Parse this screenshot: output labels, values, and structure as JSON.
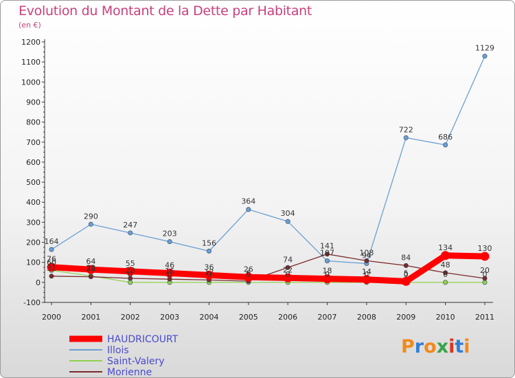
{
  "header": {
    "title": "Evolution du Montant de la Dette par Habitant",
    "subtitle": "(en €)"
  },
  "logo": {
    "text": "Proxiti",
    "colors": [
      "#f08a1c",
      "#2f7fd6",
      "#3aa34a",
      "#e2331f"
    ]
  },
  "chart_data": {
    "type": "line",
    "x": [
      "2000",
      "2001",
      "2002",
      "2003",
      "2004",
      "2005",
      "2006",
      "2007",
      "2008",
      "2009",
      "2010",
      "2011"
    ],
    "ylim": [
      -100,
      1200
    ],
    "yticks": [
      -100,
      0,
      100,
      200,
      300,
      400,
      500,
      600,
      700,
      800,
      900,
      1000,
      1100,
      1200
    ],
    "grid": false,
    "legend_position": "bottom-left",
    "series": [
      {
        "name": "HAUDRICOURT",
        "color": "#ff0000",
        "values": [
          76,
          64,
          55,
          46,
          36,
          26,
          22,
          18,
          14,
          5,
          134,
          130
        ]
      },
      {
        "name": "Illois",
        "color": "#6a9fd4",
        "values": [
          164,
          290,
          247,
          203,
          156,
          364,
          304,
          107,
          94,
          722,
          686,
          1129
        ]
      },
      {
        "name": "Saint-Valery",
        "color": "#8fd14f",
        "values": [
          60,
          32,
          0,
          0,
          0,
          0,
          0,
          0,
          0,
          0,
          0,
          0
        ]
      },
      {
        "name": "Morienne",
        "color": "#7a2a2a",
        "values": [
          31,
          28,
          20,
          16,
          12,
          6,
          74,
          141,
          108,
          84,
          48,
          20
        ]
      }
    ]
  }
}
